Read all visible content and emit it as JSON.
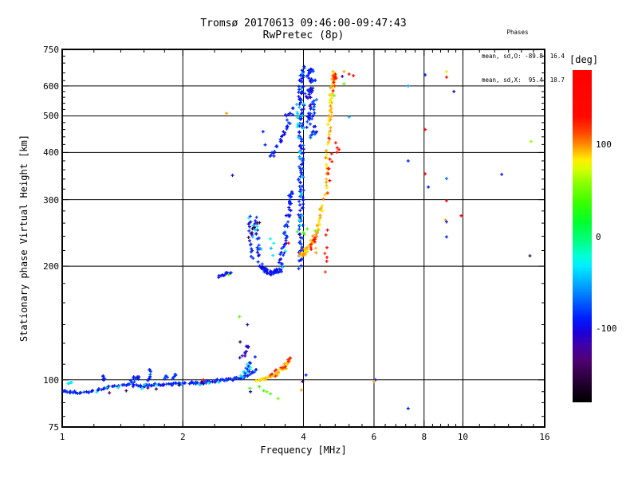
{
  "header": {
    "title": "Tromsø 20170613 09:46:00-09:47:43",
    "subtitle": "RwPretec (8p)"
  },
  "stats": {
    "header": "Phases",
    "o_line": "mean, sd,O: -89.8, 16.4",
    "x_line": "mean, sd,X:  95.4, 18.7"
  },
  "chart_data": {
    "type": "scatter",
    "title": "Tromsø 20170613 09:46:00-09:47:43",
    "subtitle": "RwPretec (8p)",
    "x_axis": {
      "label": "Frequency [MHz]",
      "scale": "log",
      "range": [
        1,
        16
      ],
      "ticks": [
        1,
        2,
        4,
        6,
        8,
        10,
        16
      ],
      "gridlines": [
        2,
        4,
        6,
        8,
        10
      ],
      "minor_ticks": [
        1.2,
        1.4,
        1.6,
        1.8,
        2.4,
        2.8,
        3.2,
        3.6,
        4.4,
        4.8,
        5.2,
        5.6,
        6.4,
        6.8,
        7.2,
        7.6,
        8.4,
        8.8,
        9.2,
        9.6,
        11,
        12,
        13,
        14,
        15
      ]
    },
    "y_axis": {
      "label": "Stationary phase Virtual Height [km]",
      "scale": "log",
      "range": [
        75,
        750
      ],
      "ticks": [
        75,
        100,
        200,
        300,
        400,
        500,
        600,
        750
      ],
      "gridlines": [
        100,
        200,
        300,
        400,
        500,
        600
      ],
      "minor_ticks": [
        80,
        87,
        93,
        110,
        125,
        140,
        160,
        180,
        220,
        240,
        260,
        280,
        320,
        340,
        360,
        380,
        420,
        440,
        460,
        480,
        520,
        540,
        560,
        580,
        620,
        650,
        690,
        720
      ]
    },
    "colorbar": {
      "label": "[deg]",
      "range": [
        180,
        -180
      ],
      "ticks": [
        100,
        0,
        -100
      ],
      "stops": [
        [
          0,
          "#ff0000"
        ],
        [
          0.14,
          "#ff0800"
        ],
        [
          0.19,
          "#ff4800"
        ],
        [
          0.225,
          "#ff8d00"
        ],
        [
          0.25,
          "#ffc400"
        ],
        [
          0.27,
          "#ffee00"
        ],
        [
          0.3,
          "#d4ff00"
        ],
        [
          0.34,
          "#8cff00"
        ],
        [
          0.4,
          "#38ff00"
        ],
        [
          0.46,
          "#00ff30"
        ],
        [
          0.52,
          "#00ff8c"
        ],
        [
          0.56,
          "#00ffd8"
        ],
        [
          0.59,
          "#00eeff"
        ],
        [
          0.63,
          "#00baff"
        ],
        [
          0.67,
          "#0086ff"
        ],
        [
          0.71,
          "#004eff"
        ],
        [
          0.75,
          "#001aff"
        ],
        [
          0.79,
          "#1c00d8"
        ],
        [
          0.83,
          "#4100a6"
        ],
        [
          0.87,
          "#500078"
        ],
        [
          0.91,
          "#38004c"
        ],
        [
          0.96,
          "#160020"
        ],
        [
          1,
          "#000000"
        ]
      ]
    },
    "traces": [
      {
        "name": "E-region-O-trace",
        "phase": -88,
        "phase_sd": 10,
        "seed": 11,
        "segments": [
          [
            1.0,
            93.5,
            1.1,
            92.5,
            16,
            2,
            1.5
          ],
          [
            1.1,
            92.5,
            1.3,
            95,
            18,
            2,
            1.5
          ],
          [
            1.3,
            95.5,
            1.5,
            97,
            16,
            2,
            1.5
          ],
          [
            1.5,
            96.5,
            1.7,
            96.5,
            16,
            2,
            1.5
          ],
          [
            1.7,
            97,
            1.95,
            97.5,
            18,
            2,
            1.5
          ],
          [
            1.95,
            97.5,
            2.2,
            98.5,
            16,
            2,
            1.5
          ],
          [
            2.2,
            98,
            2.45,
            99.5,
            16,
            2,
            1.5
          ],
          [
            2.45,
            99.5,
            2.7,
            100.5,
            14,
            2,
            1.5
          ],
          [
            2.7,
            100.5,
            2.9,
            102.5,
            12,
            2,
            1.5
          ],
          [
            2.9,
            103,
            3.05,
            107,
            10,
            2,
            2
          ]
        ]
      },
      {
        "name": "E-region-spurs",
        "phase": -85,
        "phase_sd": 12,
        "seed": 21,
        "segments": [
          [
            1.27,
            99,
            1.27,
            103,
            5,
            1.5,
            2
          ],
          [
            1.48,
            99,
            1.56,
            102,
            12,
            2.5,
            2.5
          ],
          [
            1.64,
            96,
            1.66,
            108,
            10,
            1.5,
            3
          ],
          [
            1.81,
            100,
            1.83,
            103,
            5,
            1.5,
            2
          ],
          [
            1.88,
            101,
            1.92,
            104,
            6,
            1.5,
            2
          ],
          [
            2.85,
            104,
            2.95,
            112,
            8,
            2,
            2
          ]
        ]
      },
      {
        "name": "E-rise-dark",
        "phase": -108,
        "phase_sd": 8,
        "seed": 51,
        "segments": [
          [
            2.8,
            114,
            2.92,
            124,
            10,
            2.5,
            3
          ]
        ]
      },
      {
        "name": "E-region-cyan-accents",
        "phase": -35,
        "phase_sd": 10,
        "seed": 31,
        "segments": [
          [
            1.03,
            98,
            1.06,
            99,
            4,
            1.5,
            1.5
          ],
          [
            1.12,
            93,
            2.6,
            100,
            10,
            6,
            3
          ],
          [
            2.75,
            101,
            3.0,
            108,
            6,
            3,
            3
          ]
        ]
      },
      {
        "name": "E-region-purple-accents",
        "phase": -145,
        "phase_sd": 8,
        "seed": 41,
        "segments": [
          [
            1.2,
            92,
            2.4,
            98,
            6,
            5,
            3
          ]
        ]
      },
      {
        "name": "E2-segment",
        "phase": -95,
        "phase_sd": 10,
        "seed": 61,
        "segments": [
          [
            2.44,
            188,
            2.64,
            194,
            12,
            2,
            2
          ]
        ]
      },
      {
        "name": "E-region-X-trace-yellow",
        "phase": 88,
        "phase_sd": 10,
        "seed": 71,
        "segments": [
          [
            3.05,
            99.5,
            3.25,
            101,
            12,
            2,
            1.5
          ],
          [
            3.25,
            101,
            3.45,
            104,
            12,
            2,
            1.5
          ],
          [
            3.45,
            104,
            3.6,
            108,
            10,
            2,
            2
          ],
          [
            3.58,
            108,
            3.68,
            113,
            8,
            2,
            2
          ]
        ]
      },
      {
        "name": "E-region-X-orange-accents",
        "phase": 125,
        "phase_sd": 8,
        "seed": 81,
        "segments": [
          [
            3.3,
            102,
            3.62,
            109,
            8,
            4,
            2
          ],
          [
            3.64,
            112,
            3.7,
            115,
            4,
            2,
            2
          ]
        ]
      },
      {
        "name": "E-region-green-accents",
        "phase": 40,
        "phase_sd": 8,
        "seed": 91,
        "segments": [
          [
            2.95,
            97,
            3.55,
            90,
            6,
            5,
            3
          ]
        ]
      },
      {
        "name": "F-cluster-left-arm",
        "phase": -90,
        "phase_sd": 14,
        "seed": 101,
        "segments": [
          [
            2.93,
            272,
            2.99,
            207,
            16,
            2,
            3
          ]
        ]
      },
      {
        "name": "F-cluster-arm2",
        "phase": -90,
        "phase_sd": 14,
        "seed": 111,
        "segments": [
          [
            3.03,
            270,
            3.12,
            204,
            18,
            2.5,
            3
          ]
        ]
      },
      {
        "name": "F-cluster-bottom",
        "phase": -92,
        "phase_sd": 13,
        "seed": 121,
        "segments": [
          [
            3.12,
            201,
            3.3,
            192,
            24,
            3,
            3
          ],
          [
            3.3,
            191,
            3.52,
            197,
            24,
            3,
            3
          ]
        ]
      },
      {
        "name": "F-cluster-right-arm",
        "phase": -88,
        "phase_sd": 13,
        "seed": 131,
        "segments": [
          [
            3.5,
            200,
            3.62,
            242,
            18,
            2.5,
            3
          ],
          [
            3.6,
            242,
            3.7,
            292,
            16,
            2.5,
            3
          ],
          [
            3.66,
            292,
            3.74,
            316,
            12,
            2,
            3
          ]
        ]
      },
      {
        "name": "F-cluster-cyan-accents",
        "phase": -35,
        "phase_sd": 12,
        "seed": 141,
        "segments": [
          [
            3.0,
            268,
            3.6,
            202,
            12,
            12,
            8
          ]
        ]
      },
      {
        "name": "F-cluster-purple-accents",
        "phase": -148,
        "phase_sd": 6,
        "seed": 151,
        "segments": [
          [
            2.94,
            232,
            3.1,
            272,
            6,
            3,
            8
          ]
        ]
      },
      {
        "name": "O-mode-4MHz-spike",
        "phase": -90,
        "phase_sd": 13,
        "seed": 161,
        "segments": [
          [
            3.92,
            198,
            3.96,
            255,
            24,
            3,
            3
          ],
          [
            3.93,
            255,
            3.96,
            335,
            28,
            3,
            3
          ],
          [
            3.94,
            335,
            3.97,
            430,
            28,
            3,
            3
          ],
          [
            3.94,
            430,
            3.97,
            555,
            28,
            3,
            3
          ],
          [
            3.93,
            555,
            3.98,
            672,
            28,
            3,
            3
          ]
        ]
      },
      {
        "name": "spike-cyan-accents",
        "phase": -35,
        "phase_sd": 12,
        "seed": 171,
        "segments": [
          [
            3.93,
            240,
            3.97,
            640,
            14,
            3,
            6
          ],
          [
            3.85,
            470,
            3.88,
            530,
            8,
            2,
            6
          ]
        ]
      },
      {
        "name": "O-mode-upper-cluster",
        "phase": -85,
        "phase_sd": 13,
        "seed": 181,
        "segments": [
          [
            4.12,
            638,
            4.2,
            668,
            16,
            3,
            4
          ],
          [
            4.1,
            560,
            4.24,
            632,
            24,
            4,
            6
          ],
          [
            4.12,
            468,
            4.27,
            556,
            24,
            4,
            6
          ],
          [
            4.2,
            432,
            4.3,
            468,
            12,
            3,
            5
          ]
        ]
      },
      {
        "name": "upper-cluster-dark-accents",
        "phase": -112,
        "phase_sd": 6,
        "seed": 191,
        "segments": [
          [
            4.1,
            500,
            4.25,
            620,
            8,
            4,
            15
          ]
        ]
      },
      {
        "name": "O-mode-arc",
        "phase": -92,
        "phase_sd": 10,
        "seed": 201,
        "segments": [
          [
            3.3,
            388,
            3.46,
            416,
            8,
            2,
            4
          ],
          [
            3.46,
            416,
            3.58,
            450,
            8,
            2,
            4
          ],
          [
            3.58,
            450,
            3.7,
            488,
            9,
            2,
            4
          ],
          [
            3.62,
            495,
            3.76,
            525,
            8,
            3,
            5
          ]
        ]
      },
      {
        "name": "X-mode-F-trace-yellow",
        "phase": 90,
        "phase_sd": 11,
        "seed": 211,
        "segments": [
          [
            3.93,
            213,
            4.1,
            221,
            16,
            3,
            3
          ],
          [
            4.08,
            221,
            4.3,
            243,
            16,
            3,
            3
          ],
          [
            4.3,
            243,
            4.5,
            288,
            14,
            2.5,
            3
          ],
          [
            4.52,
            298,
            4.6,
            378,
            12,
            2,
            4
          ],
          [
            4.57,
            378,
            4.64,
            468,
            12,
            2,
            4
          ],
          [
            4.6,
            468,
            4.68,
            508,
            8,
            2,
            4
          ],
          [
            4.64,
            508,
            4.72,
            588,
            14,
            3,
            5
          ],
          [
            4.68,
            588,
            4.8,
            658,
            16,
            3,
            5
          ]
        ]
      },
      {
        "name": "X-mode-orange-accents",
        "phase": 128,
        "phase_sd": 8,
        "seed": 221,
        "segments": [
          [
            4.6,
            300,
            4.68,
            470,
            8,
            2,
            25
          ],
          [
            4.7,
            595,
            4.82,
            662,
            10,
            3,
            8
          ],
          [
            4.15,
            222,
            4.35,
            243,
            7,
            3,
            3
          ],
          [
            4.54,
            200,
            4.57,
            248,
            7,
            1.5,
            8
          ],
          [
            4.72,
            400,
            4.95,
            455,
            5,
            3,
            18
          ]
        ]
      },
      {
        "name": "X-mode-yellow-dash-column",
        "phase": 95,
        "phase_sd": 6,
        "seed": 231,
        "segments": [
          [
            4.32,
            208,
            4.36,
            283,
            6,
            2,
            8
          ]
        ]
      },
      {
        "name": "X-mode-green-accents",
        "phase": 42,
        "phase_sd": 8,
        "seed": 241,
        "segments": [
          [
            3.88,
            250,
            4.2,
            246,
            5,
            5,
            4
          ]
        ]
      }
    ],
    "points": [
      [
        5.33,
        639,
        135
      ],
      [
        8.05,
        642,
        -90
      ],
      [
        9.1,
        655,
        75
      ],
      [
        9.1,
        633,
        135
      ],
      [
        7.3,
        600,
        -55
      ],
      [
        9.5,
        580,
        -110
      ],
      [
        8.05,
        460,
        135
      ],
      [
        7.3,
        380,
        -90
      ],
      [
        8.2,
        324,
        -90
      ],
      [
        9.1,
        341,
        -65
      ],
      [
        8.05,
        351,
        130
      ],
      [
        9.1,
        298,
        135
      ],
      [
        9.9,
        272,
        172
      ],
      [
        9.05,
        265,
        95
      ],
      [
        9.1,
        262,
        -90
      ],
      [
        9.1,
        239,
        -90
      ],
      [
        14.7,
        213,
        -145
      ],
      [
        12.5,
        350,
        -90
      ],
      [
        14.8,
        428,
        60
      ],
      [
        5.0,
        636,
        -110
      ],
      [
        5.05,
        655,
        95
      ],
      [
        5.2,
        645,
        135
      ],
      [
        5.05,
        608,
        45
      ],
      [
        4.77,
        566,
        45
      ],
      [
        5.2,
        497,
        -50
      ],
      [
        6.05,
        100,
        -90
      ],
      [
        6.0,
        99,
        95
      ],
      [
        7.3,
        84,
        -90
      ],
      [
        4.06,
        103,
        -90
      ],
      [
        3.95,
        94,
        95
      ],
      [
        3.98,
        99,
        -150
      ],
      [
        2.25,
        100,
        172
      ],
      [
        2.95,
        93,
        -110
      ],
      [
        3.03,
        115,
        -90
      ],
      [
        2.9,
        110,
        -30
      ],
      [
        2.78,
        126,
        -140
      ],
      [
        2.77,
        147,
        45
      ],
      [
        2.9,
        140,
        -115
      ],
      [
        2.66,
        348,
        -115
      ],
      [
        2.57,
        508,
        95
      ],
      [
        3.17,
        454,
        -90
      ],
      [
        3.21,
        419,
        -90
      ],
      [
        2.6,
        190,
        35
      ],
      [
        3.67,
        230,
        130
      ],
      [
        4.18,
        222,
        168
      ]
    ]
  }
}
